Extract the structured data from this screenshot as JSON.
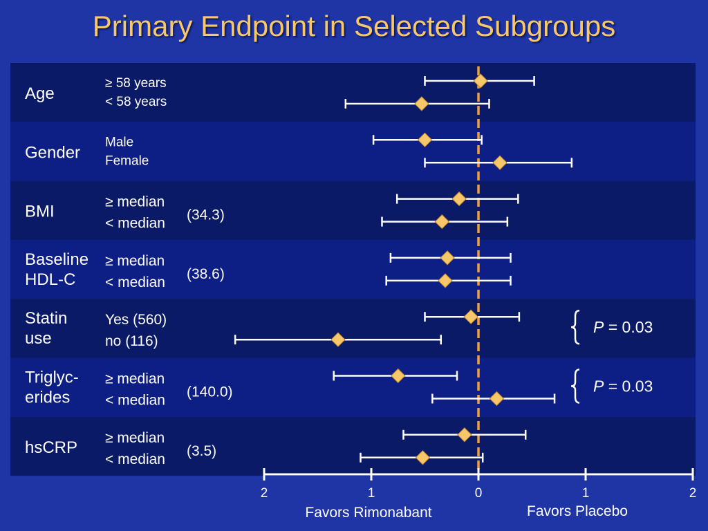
{
  "title": "Primary Endpoint in Selected Subgroups",
  "chart_data": {
    "type": "forest",
    "title": "Primary Endpoint in Selected Subgroups",
    "xlim": [
      -2,
      2
    ],
    "x_ticks": [
      {
        "value": -2,
        "label": "2"
      },
      {
        "value": -1,
        "label": "1"
      },
      {
        "value": 0,
        "label": "0"
      },
      {
        "value": 1,
        "label": "1"
      },
      {
        "value": 2,
        "label": "2"
      }
    ],
    "x_label_left": "Favors Rimonabant",
    "x_label_right": "Favors Placebo",
    "reference_line": 0,
    "colors": {
      "background": "#1f35a6",
      "row_dark": "#0a1a66",
      "row_light": "#0d1e84",
      "marker": "#f7c76a",
      "ci_line": "#ffffff",
      "reference": "#f0a040",
      "title": "#f7c76a"
    },
    "groups": [
      {
        "name": "Age",
        "median": "",
        "p_value": "",
        "subgroups": [
          {
            "label": "≥ 58 years",
            "estimate": 0.02,
            "ci": [
              -0.5,
              0.52
            ]
          },
          {
            "label": "< 58 years",
            "estimate": -0.53,
            "ci": [
              -1.24,
              0.1
            ]
          }
        ]
      },
      {
        "name": "Gender",
        "median": "",
        "p_value": "",
        "subgroups": [
          {
            "label": "Male",
            "estimate": -0.5,
            "ci": [
              -0.98,
              0.03
            ]
          },
          {
            "label": "Female",
            "estimate": 0.2,
            "ci": [
              -0.5,
              0.87
            ]
          }
        ]
      },
      {
        "name": "BMI",
        "median": "(34.3)",
        "p_value": "",
        "subgroups": [
          {
            "label": "≥ median",
            "estimate": -0.18,
            "ci": [
              -0.76,
              0.37
            ]
          },
          {
            "label": "< median",
            "estimate": -0.34,
            "ci": [
              -0.9,
              0.27
            ]
          }
        ]
      },
      {
        "name": "Baseline HDL-C",
        "median": "(38.6)",
        "p_value": "",
        "subgroups": [
          {
            "label": "≥ median",
            "estimate": -0.29,
            "ci": [
              -0.82,
              0.3
            ]
          },
          {
            "label": "< median",
            "estimate": -0.31,
            "ci": [
              -0.86,
              0.3
            ]
          }
        ]
      },
      {
        "name": "Statin use",
        "median": "",
        "p_value": "P = 0.03",
        "subgroups": [
          {
            "label": "Yes (560)",
            "estimate": -0.07,
            "ci": [
              -0.5,
              0.38
            ]
          },
          {
            "label": "no (116)",
            "estimate": -1.31,
            "ci": [
              -2.27,
              -0.35
            ]
          }
        ]
      },
      {
        "name": "Triglyc-erides",
        "median": "(140.0)",
        "p_value": "P = 0.03",
        "subgroups": [
          {
            "label": "≥ median",
            "estimate": -0.75,
            "ci": [
              -1.35,
              -0.2
            ]
          },
          {
            "label": "< median",
            "estimate": 0.17,
            "ci": [
              -0.43,
              0.71
            ]
          }
        ]
      },
      {
        "name": "hsCRP",
        "median": "(3.5)",
        "p_value": "",
        "subgroups": [
          {
            "label": "≥ median",
            "estimate": -0.13,
            "ci": [
              -0.7,
              0.44
            ]
          },
          {
            "label": "< median",
            "estimate": -0.52,
            "ci": [
              -1.1,
              0.04
            ]
          }
        ]
      }
    ]
  }
}
